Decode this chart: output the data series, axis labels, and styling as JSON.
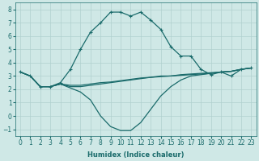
{
  "xlabel": "Humidex (Indice chaleur)",
  "xlim": [
    -0.5,
    23.5
  ],
  "ylim": [
    -1.5,
    8.5
  ],
  "xticks": [
    0,
    1,
    2,
    3,
    4,
    5,
    6,
    7,
    8,
    9,
    10,
    11,
    12,
    13,
    14,
    15,
    16,
    17,
    18,
    19,
    20,
    21,
    22,
    23
  ],
  "yticks": [
    -1,
    0,
    1,
    2,
    3,
    4,
    5,
    6,
    7,
    8
  ],
  "bg_color": "#cfe8e6",
  "line_color": "#1a6b6b",
  "grid_color": "#b0d0ce",
  "series_marker": {
    "x": [
      0,
      1,
      2,
      3,
      4,
      5,
      6,
      7,
      8,
      9,
      10,
      11,
      12,
      13,
      14,
      15,
      16,
      17,
      18,
      19,
      20,
      21,
      22,
      23
    ],
    "y": [
      3.3,
      3.0,
      2.2,
      2.2,
      2.5,
      3.5,
      5.0,
      6.3,
      7.0,
      7.8,
      7.8,
      7.5,
      7.8,
      7.2,
      6.5,
      5.2,
      4.5,
      4.5,
      3.5,
      3.1,
      3.3,
      3.0,
      3.5,
      3.6
    ]
  },
  "series_flat1": {
    "x": [
      0,
      1,
      2,
      3,
      4,
      5,
      6,
      7,
      8,
      9,
      10,
      11,
      12,
      13,
      14,
      15,
      16,
      17,
      18,
      19,
      20,
      21,
      22,
      23
    ],
    "y": [
      3.3,
      3.0,
      2.2,
      2.2,
      2.4,
      2.2,
      2.2,
      2.3,
      2.4,
      2.5,
      2.6,
      2.7,
      2.8,
      2.9,
      3.0,
      3.0,
      3.1,
      3.15,
      3.2,
      3.25,
      3.3,
      3.35,
      3.5,
      3.6
    ]
  },
  "series_flat2": {
    "x": [
      0,
      1,
      2,
      3,
      4,
      5,
      6,
      7,
      8,
      9,
      10,
      11,
      12,
      13,
      14,
      15,
      16,
      17,
      18,
      19,
      20,
      21,
      22,
      23
    ],
    "y": [
      3.3,
      3.0,
      2.2,
      2.2,
      2.4,
      2.3,
      2.3,
      2.4,
      2.5,
      2.55,
      2.65,
      2.75,
      2.85,
      2.9,
      2.95,
      3.0,
      3.05,
      3.1,
      3.15,
      3.2,
      3.3,
      3.35,
      3.5,
      3.6
    ]
  },
  "series_dip": {
    "x": [
      0,
      1,
      2,
      3,
      4,
      5,
      6,
      7,
      8,
      9,
      10,
      11,
      12,
      13,
      14,
      15,
      16,
      17,
      18,
      19,
      20,
      21,
      22,
      23
    ],
    "y": [
      3.3,
      3.0,
      2.2,
      2.2,
      2.4,
      2.1,
      1.8,
      1.2,
      0.0,
      -0.8,
      -1.1,
      -1.1,
      -0.5,
      0.5,
      1.5,
      2.2,
      2.7,
      3.0,
      3.1,
      3.2,
      3.3,
      3.35,
      3.5,
      3.6
    ]
  }
}
